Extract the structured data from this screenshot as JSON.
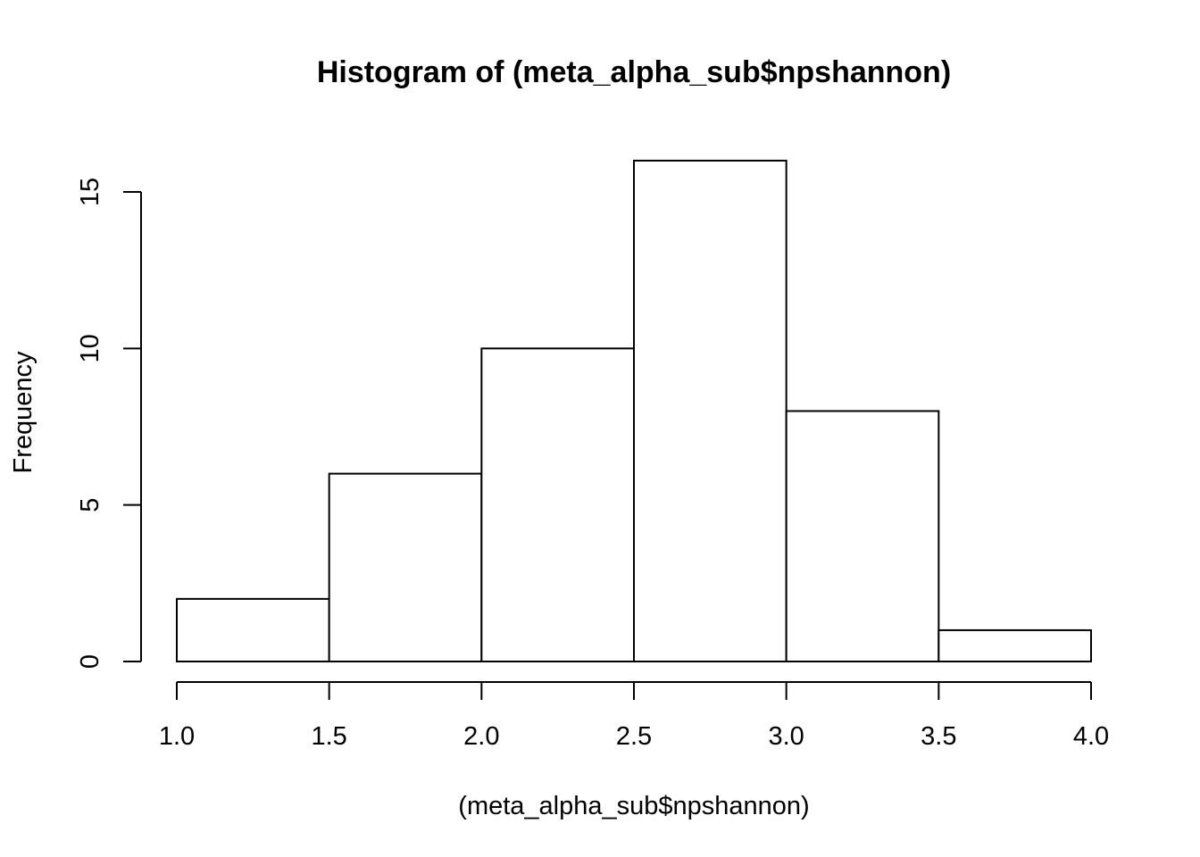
{
  "chart_data": {
    "type": "bar",
    "title": "Histogram of (meta_alpha_sub$npshannon)",
    "xlabel": "(meta_alpha_sub$npshannon)",
    "ylabel": "Frequency",
    "bins": [
      {
        "start": 1.0,
        "end": 1.5,
        "count": 2
      },
      {
        "start": 1.5,
        "end": 2.0,
        "count": 6
      },
      {
        "start": 2.0,
        "end": 2.5,
        "count": 10
      },
      {
        "start": 2.5,
        "end": 3.0,
        "count": 16
      },
      {
        "start": 3.0,
        "end": 3.5,
        "count": 8
      },
      {
        "start": 3.5,
        "end": 4.0,
        "count": 1
      }
    ],
    "xlim": [
      1.0,
      4.0
    ],
    "ylim": [
      0,
      16
    ],
    "x_ticks": [
      "1.0",
      "1.5",
      "2.0",
      "2.5",
      "3.0",
      "3.5",
      "4.0"
    ],
    "y_ticks": [
      "0",
      "5",
      "10",
      "15"
    ],
    "grid": false,
    "colors": {
      "bar_fill": "#ffffff",
      "bar_stroke": "#000000"
    }
  }
}
